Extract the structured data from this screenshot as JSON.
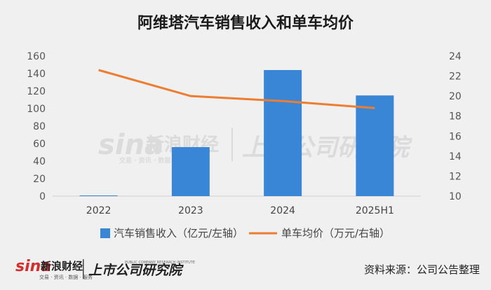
{
  "chart_data": {
    "type": "bar",
    "title": "阿维塔汽车销售收入和单车均价",
    "categories": [
      "2022",
      "2023",
      "2024",
      "2025H1"
    ],
    "series": [
      {
        "name": "汽车销售收入（亿元/左轴）",
        "type": "bar",
        "axis": "left",
        "values": [
          0.8,
          56,
          144,
          115
        ],
        "color": "#3a86d6"
      },
      {
        "name": "单车均价（万元/右轴）",
        "type": "line",
        "axis": "right",
        "values": [
          22.6,
          20.0,
          19.5,
          18.8
        ],
        "color": "#ed7d31"
      }
    ],
    "y_left": {
      "min": 0,
      "max": 160,
      "step": 20
    },
    "y_right": {
      "min": 10,
      "max": 24,
      "step": 2
    },
    "legend_position": "bottom",
    "grid": false
  },
  "footer": {
    "source": "资料来源：公司公告整理",
    "logo_sina": "sina",
    "logo_cn": "新浪财经",
    "logo_sub": "交易 · 资讯 · 数据 · 服务",
    "logo_research": "上市公司研究院",
    "logo_research_en": "PUBLIC COMPANY RESEARCH INSTITUTE"
  },
  "watermark": {
    "sina": "sina",
    "cn": "新浪财经",
    "research": "上市公司研究院",
    "sub": "交易 · 资讯 · 数据"
  }
}
